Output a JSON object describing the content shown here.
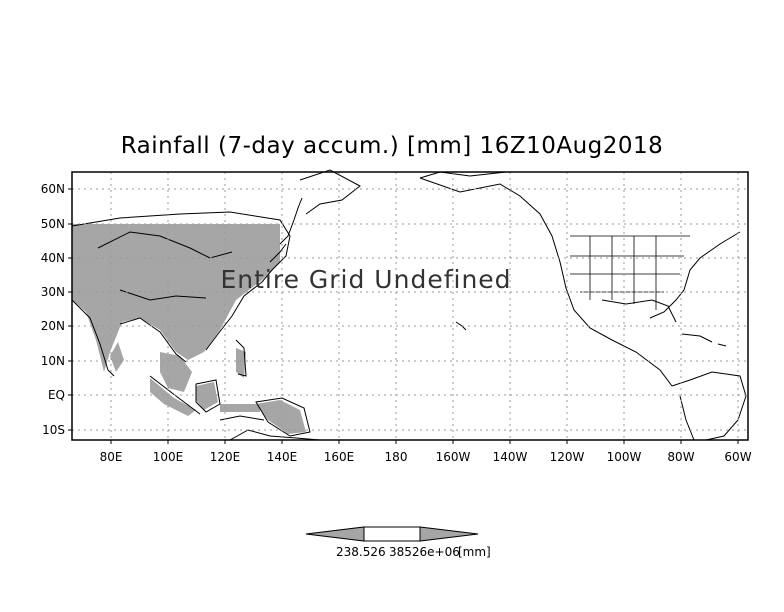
{
  "title": "Rainfall (7-day accum.) [mm] 16Z10Aug2018",
  "overlay_text": "Entire Grid Undefined",
  "lat_labels": [
    "60N",
    "50N",
    "40N",
    "30N",
    "20N",
    "10N",
    "EQ",
    "10S"
  ],
  "lon_labels": [
    "80E",
    "100E",
    "120E",
    "140E",
    "160E",
    "180",
    "160W",
    "140W",
    "120W",
    "100W",
    "80W",
    "60W"
  ],
  "colorbar": {
    "labels": [
      "238.526",
      "38526e+06",
      "[mm]"
    ]
  },
  "colors": {
    "land_shade": "#a6a6a6",
    "coastline": "#000000",
    "grid": "#9a9a9a",
    "colorbar_fill": "#a6a6a6"
  }
}
